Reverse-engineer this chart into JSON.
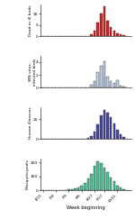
{
  "weeks": [
    19,
    20,
    21,
    22,
    23,
    24,
    25,
    26,
    27,
    28,
    29,
    30,
    31,
    32,
    33,
    34,
    35,
    36,
    37,
    38,
    39,
    40,
    41,
    42,
    43,
    44,
    45
  ],
  "dead_birds": [
    0,
    0,
    0,
    0,
    0,
    0,
    0,
    0,
    0,
    0,
    0,
    0,
    0,
    0,
    0.2,
    0.8,
    2.5,
    6.0,
    10.0,
    13.0,
    7.0,
    4.0,
    2.5,
    1.5,
    1.0,
    0.5,
    0.2
  ],
  "infected_birds": [
    0,
    0,
    0,
    0,
    0,
    0,
    0,
    0,
    0,
    0,
    0,
    0,
    0,
    0,
    0,
    0.5,
    1.0,
    2.5,
    3.5,
    4.2,
    1.8,
    1.0,
    0.8,
    1.2,
    0.4,
    0.2,
    0.1
  ],
  "human_ill": [
    0,
    0,
    0,
    0,
    0,
    0,
    0,
    0,
    0,
    0,
    0,
    0,
    0,
    1,
    2,
    4,
    10,
    18,
    30,
    36,
    33,
    28,
    20,
    12,
    6,
    3,
    1
  ],
  "mosquito_pools": [
    0,
    0,
    0,
    0,
    1,
    2,
    3,
    5,
    8,
    12,
    15,
    22,
    35,
    55,
    85,
    120,
    175,
    210,
    195,
    165,
    130,
    95,
    65,
    38,
    20,
    10,
    4
  ],
  "dead_birds_color": "#e02020",
  "infected_birds_color": "#c0d0e8",
  "human_ill_color": "#4848a8",
  "mosquito_pools_color": "#48c898",
  "dead_birds_ylim": [
    0,
    14
  ],
  "dead_birds_yticks": [
    0,
    5,
    10
  ],
  "dead_birds_ytick_labels": [
    "0",
    "5",
    "10"
  ],
  "infected_birds_ylim": [
    0,
    5
  ],
  "infected_birds_yticks": [
    0,
    2,
    4
  ],
  "infected_birds_ytick_labels": [
    "0",
    "2",
    "4"
  ],
  "human_ill_ylim": [
    0,
    40
  ],
  "human_ill_yticks": [
    0,
    25
  ],
  "human_ill_ytick_labels": [
    "0",
    "25"
  ],
  "mosquito_pools_ylim": [
    0,
    230
  ],
  "mosquito_pools_yticks": [
    0,
    100,
    200
  ],
  "mosquito_pools_ytick_labels": [
    "0",
    "100",
    "200"
  ],
  "dead_birds_ylabel": "Dead or ill birds",
  "infected_birds_ylabel": "WN virus-\ninfected birds",
  "human_ill_ylabel": "Human illnesses",
  "mosquito_pools_ylabel": "Mosquito pools",
  "xlabel": "Week beginning",
  "xtick_labels": [
    "4/15",
    "6/4",
    "7/9",
    "8/6",
    "8/27",
    "9/17",
    "10/15"
  ],
  "xtick_positions": [
    19,
    23,
    27,
    31,
    35,
    38,
    42
  ],
  "background_color": "#ffffff",
  "bar_edge_color": "#111111",
  "bar_linewidth": 0.25,
  "bar_width": 0.7
}
